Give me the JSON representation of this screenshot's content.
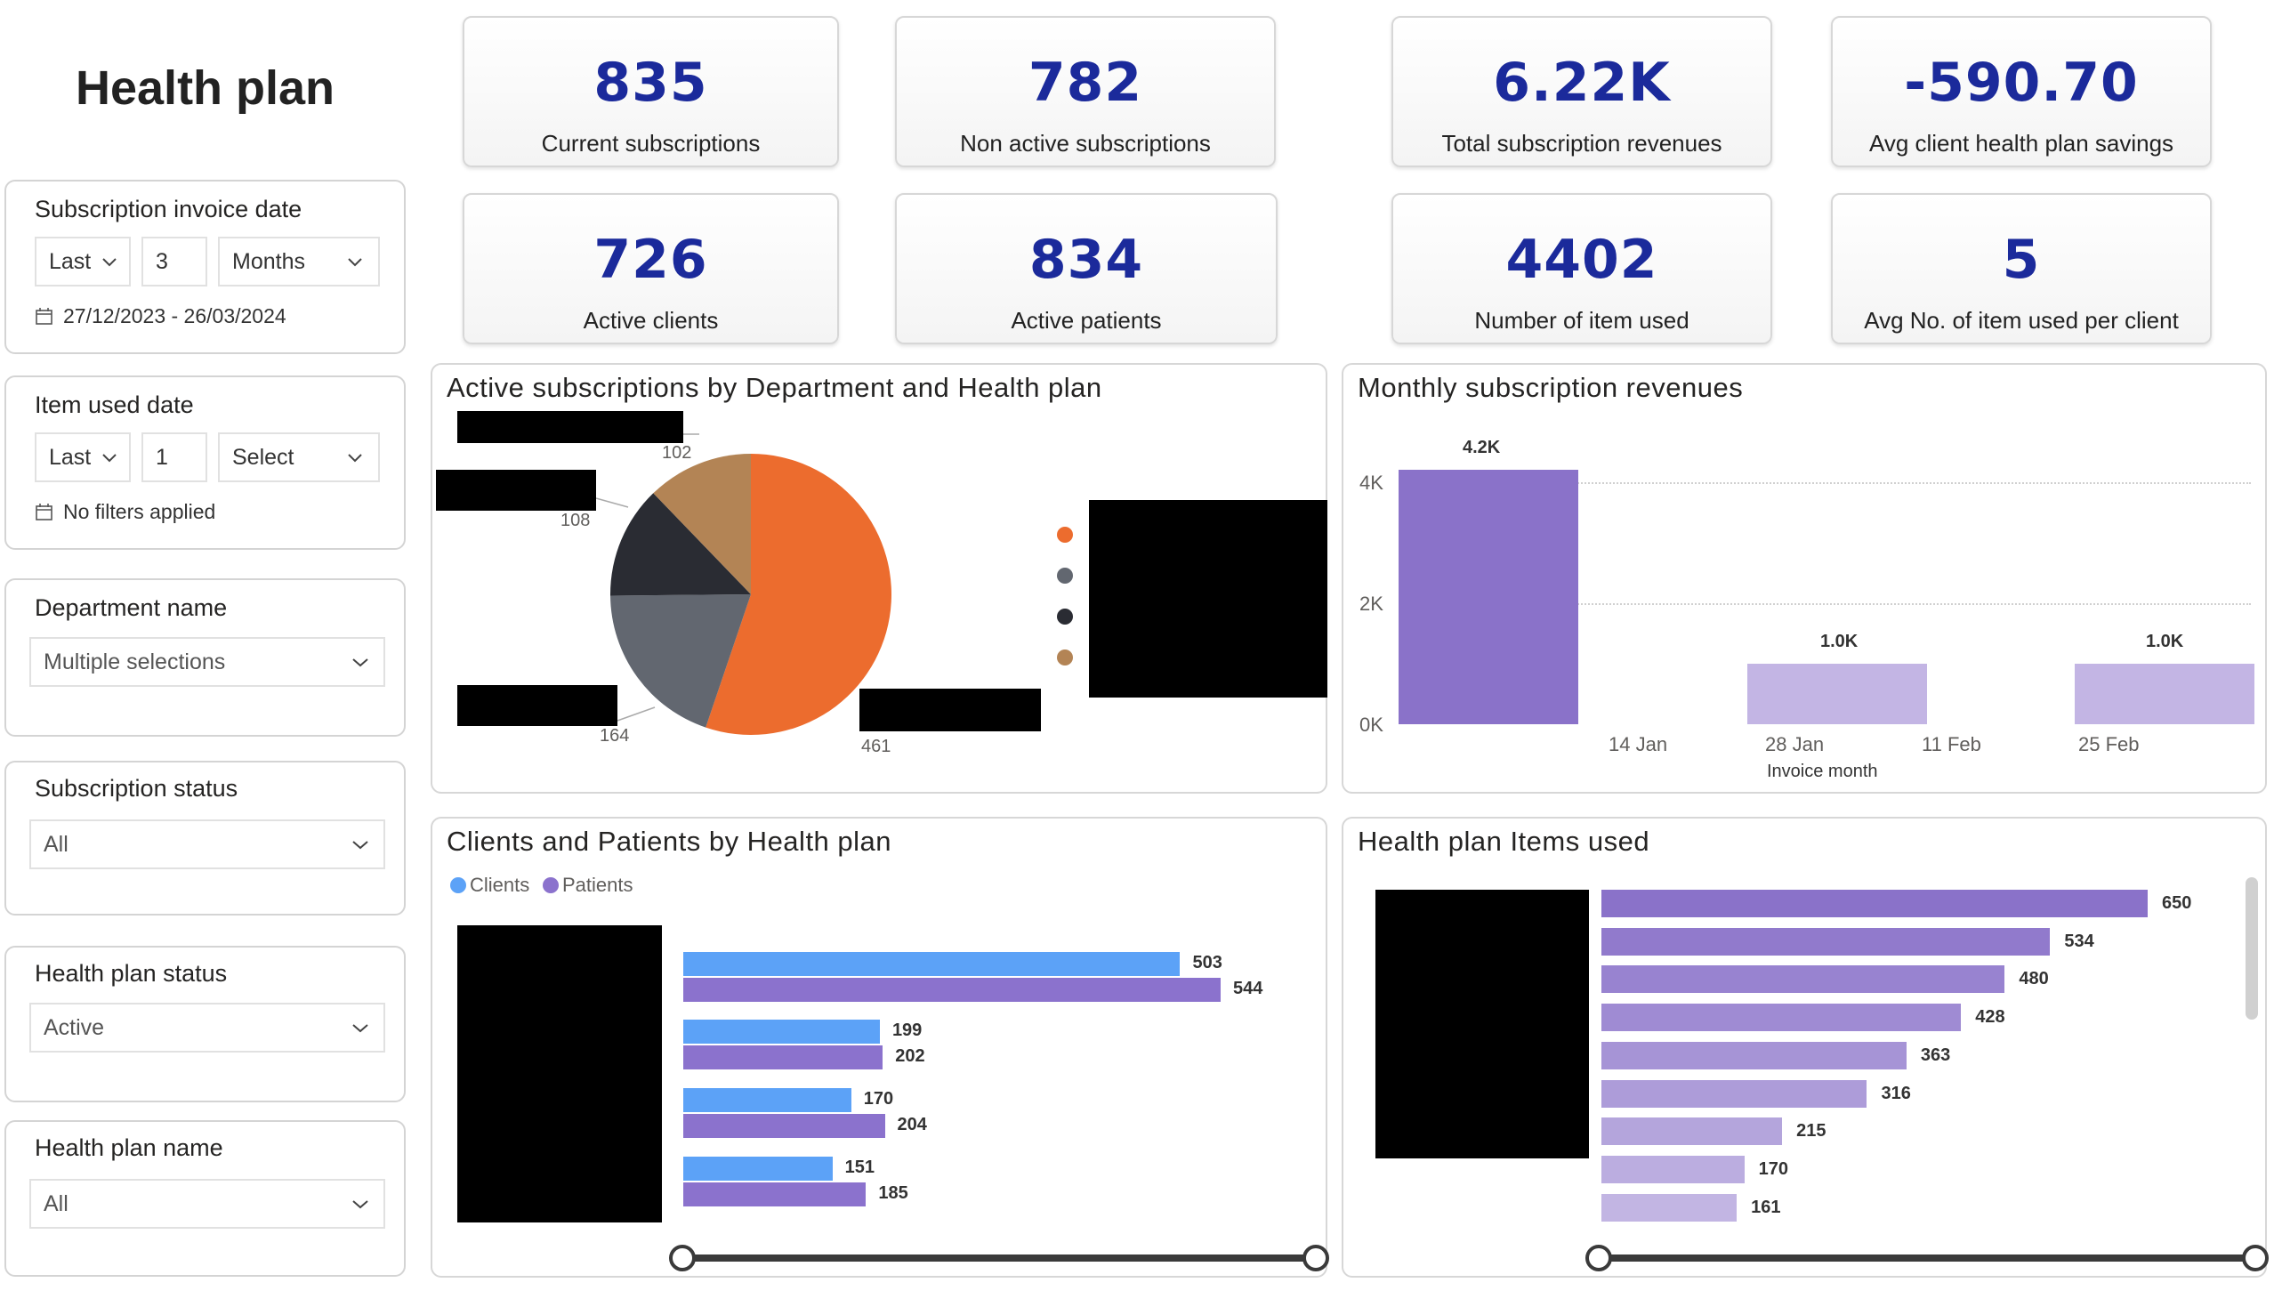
{
  "page": {
    "title": "Health plan"
  },
  "slicers": {
    "invoice_date": {
      "title": "Subscription invoice date",
      "relative": "Last",
      "count": "3",
      "unit": "Months",
      "range": "27/12/2023 - 26/03/2024"
    },
    "item_used_date": {
      "title": "Item used date",
      "relative": "Last",
      "count": "1",
      "unit": "Select",
      "range": "No filters applied"
    },
    "department": {
      "title": "Department name",
      "value": "Multiple selections"
    },
    "subscription_status": {
      "title": "Subscription status",
      "value": "All"
    },
    "health_plan_status": {
      "title": "Health plan status",
      "value": "Active"
    },
    "health_plan_name": {
      "title": "Health plan name",
      "value": "All"
    }
  },
  "kpis": [
    {
      "value": "835",
      "label": "Current subscriptions"
    },
    {
      "value": "782",
      "label": "Non active subscriptions"
    },
    {
      "value": "6.22K",
      "label": "Total subscription revenues"
    },
    {
      "value": "-590.70",
      "label": "Avg client health plan savings"
    },
    {
      "value": "726",
      "label": "Active clients"
    },
    {
      "value": "834",
      "label": "Active patients"
    },
    {
      "value": "4402",
      "label": "Number of item used"
    },
    {
      "value": "5",
      "label": "Avg No. of item used per client"
    }
  ],
  "colors": {
    "kpi_value": "#1b2a9b",
    "orange": "#ec6c2e",
    "grey": "#626770",
    "dark": "#2a2c33",
    "brown": "#b38455",
    "purple": "#8a72c9",
    "light_purple": "#c3b5e4",
    "clients": "#5ca2f7",
    "patients": "#8b72cd"
  },
  "chart_data": [
    {
      "type": "pie",
      "title": "Active subscriptions by Department and Health plan",
      "values": [
        461,
        164,
        108,
        102
      ],
      "data_labels": [
        "461",
        "164",
        "108",
        "102"
      ],
      "colors": [
        "#ec6c2e",
        "#626770",
        "#2a2c33",
        "#b38455"
      ]
    },
    {
      "type": "bar",
      "title": "Monthly subscription revenues",
      "xlabel": "Invoice month",
      "x_ticks": [
        "14 Jan",
        "28 Jan",
        "11 Feb",
        "25 Feb"
      ],
      "y_ticks": [
        "0K",
        "2K",
        "4K"
      ],
      "ylim": [
        0,
        4.4
      ],
      "values": [
        4.2,
        1.0,
        1.0
      ],
      "data_labels": [
        "4.2K",
        "1.0K",
        "1.0K"
      ],
      "bar_colors": [
        "#8a72c9",
        "#c3b5e4",
        "#c3b5e4"
      ]
    },
    {
      "type": "bar",
      "title": "Clients and Patients by Health plan",
      "orientation": "horizontal",
      "legend": [
        "Clients",
        "Patients"
      ],
      "series": [
        {
          "name": "Clients",
          "values": [
            503,
            199,
            170,
            151
          ],
          "color": "#5ca2f7"
        },
        {
          "name": "Patients",
          "values": [
            544,
            202,
            204,
            185
          ],
          "color": "#8b72cd"
        }
      ],
      "xlim": [
        0,
        544
      ]
    },
    {
      "type": "bar",
      "title": "Health plan Items used",
      "orientation": "horizontal",
      "values": [
        650,
        534,
        480,
        428,
        363,
        316,
        215,
        170,
        161
      ],
      "xlim": [
        0,
        650
      ]
    }
  ]
}
